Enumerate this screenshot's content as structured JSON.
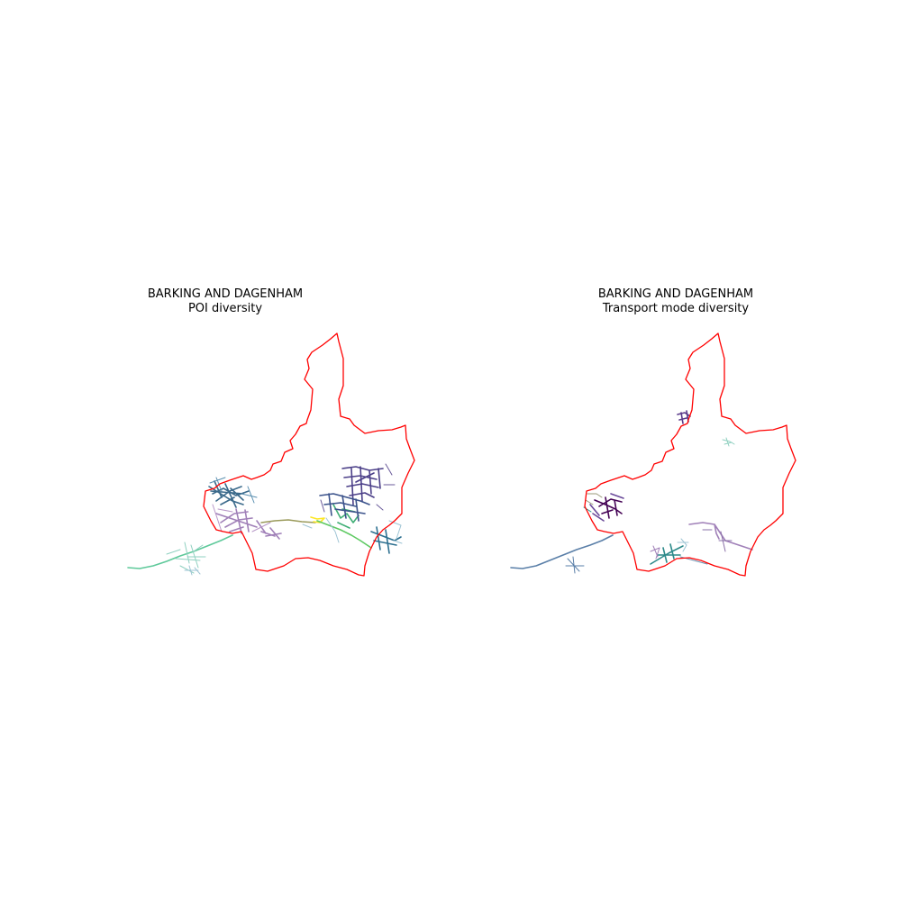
{
  "panels": [
    {
      "borough": "BARKING AND DAGENHAM",
      "subtitle": "POI diversity"
    },
    {
      "borough": "BARKING AND DAGENHAM",
      "subtitle": "Transport mode diversity"
    }
  ],
  "colors": {
    "boundary": "#ff0000",
    "palette": [
      "#440154",
      "#3b528b",
      "#21918c",
      "#5ec962",
      "#fde725",
      "#7f5fa0",
      "#9ec4d4",
      "#a080b8"
    ]
  }
}
